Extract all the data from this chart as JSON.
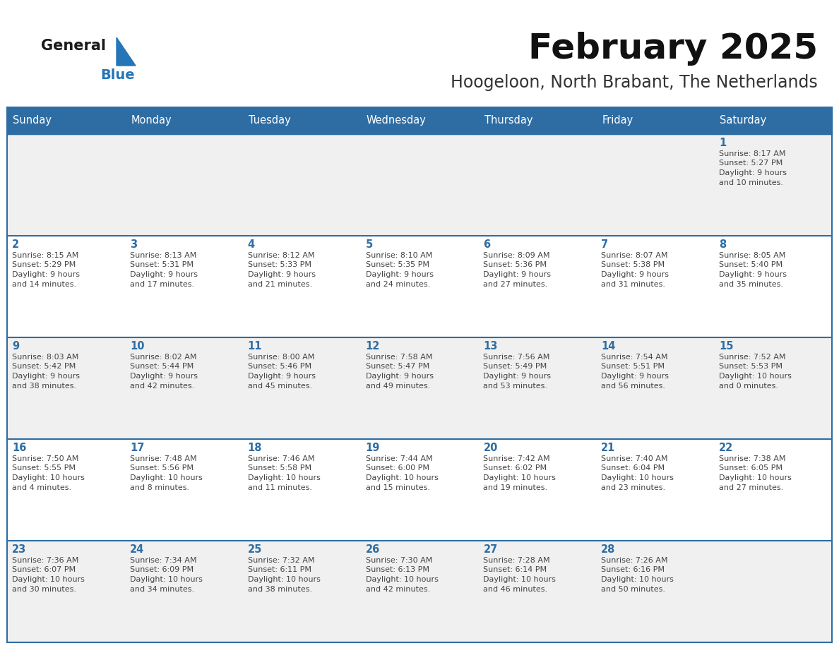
{
  "title": "February 2025",
  "subtitle": "Hoogeloon, North Brabant, The Netherlands",
  "days_of_week": [
    "Sunday",
    "Monday",
    "Tuesday",
    "Wednesday",
    "Thursday",
    "Friday",
    "Saturday"
  ],
  "header_bg_color": "#2E6DA4",
  "header_text_color": "#FFFFFF",
  "cell_bg_color_odd": "#F0F0F0",
  "cell_bg_color_even": "#FFFFFF",
  "border_color": "#2E6DA4",
  "day_number_color": "#2E6DA4",
  "cell_text_color": "#444444",
  "title_color": "#111111",
  "subtitle_color": "#333333",
  "logo_general_color": "#1a1a1a",
  "logo_blue_color": "#2575B7",
  "background_color": "#FFFFFF",
  "calendar_data": [
    {
      "day": 1,
      "col": 6,
      "row": 0,
      "sunrise": "8:17 AM",
      "sunset": "5:27 PM",
      "daylight_h": "9 hours",
      "daylight_m": "and 10 minutes."
    },
    {
      "day": 2,
      "col": 0,
      "row": 1,
      "sunrise": "8:15 AM",
      "sunset": "5:29 PM",
      "daylight_h": "9 hours",
      "daylight_m": "and 14 minutes."
    },
    {
      "day": 3,
      "col": 1,
      "row": 1,
      "sunrise": "8:13 AM",
      "sunset": "5:31 PM",
      "daylight_h": "9 hours",
      "daylight_m": "and 17 minutes."
    },
    {
      "day": 4,
      "col": 2,
      "row": 1,
      "sunrise": "8:12 AM",
      "sunset": "5:33 PM",
      "daylight_h": "9 hours",
      "daylight_m": "and 21 minutes."
    },
    {
      "day": 5,
      "col": 3,
      "row": 1,
      "sunrise": "8:10 AM",
      "sunset": "5:35 PM",
      "daylight_h": "9 hours",
      "daylight_m": "and 24 minutes."
    },
    {
      "day": 6,
      "col": 4,
      "row": 1,
      "sunrise": "8:09 AM",
      "sunset": "5:36 PM",
      "daylight_h": "9 hours",
      "daylight_m": "and 27 minutes."
    },
    {
      "day": 7,
      "col": 5,
      "row": 1,
      "sunrise": "8:07 AM",
      "sunset": "5:38 PM",
      "daylight_h": "9 hours",
      "daylight_m": "and 31 minutes."
    },
    {
      "day": 8,
      "col": 6,
      "row": 1,
      "sunrise": "8:05 AM",
      "sunset": "5:40 PM",
      "daylight_h": "9 hours",
      "daylight_m": "and 35 minutes."
    },
    {
      "day": 9,
      "col": 0,
      "row": 2,
      "sunrise": "8:03 AM",
      "sunset": "5:42 PM",
      "daylight_h": "9 hours",
      "daylight_m": "and 38 minutes."
    },
    {
      "day": 10,
      "col": 1,
      "row": 2,
      "sunrise": "8:02 AM",
      "sunset": "5:44 PM",
      "daylight_h": "9 hours",
      "daylight_m": "and 42 minutes."
    },
    {
      "day": 11,
      "col": 2,
      "row": 2,
      "sunrise": "8:00 AM",
      "sunset": "5:46 PM",
      "daylight_h": "9 hours",
      "daylight_m": "and 45 minutes."
    },
    {
      "day": 12,
      "col": 3,
      "row": 2,
      "sunrise": "7:58 AM",
      "sunset": "5:47 PM",
      "daylight_h": "9 hours",
      "daylight_m": "and 49 minutes."
    },
    {
      "day": 13,
      "col": 4,
      "row": 2,
      "sunrise": "7:56 AM",
      "sunset": "5:49 PM",
      "daylight_h": "9 hours",
      "daylight_m": "and 53 minutes."
    },
    {
      "day": 14,
      "col": 5,
      "row": 2,
      "sunrise": "7:54 AM",
      "sunset": "5:51 PM",
      "daylight_h": "9 hours",
      "daylight_m": "and 56 minutes."
    },
    {
      "day": 15,
      "col": 6,
      "row": 2,
      "sunrise": "7:52 AM",
      "sunset": "5:53 PM",
      "daylight_h": "10 hours",
      "daylight_m": "and 0 minutes."
    },
    {
      "day": 16,
      "col": 0,
      "row": 3,
      "sunrise": "7:50 AM",
      "sunset": "5:55 PM",
      "daylight_h": "10 hours",
      "daylight_m": "and 4 minutes."
    },
    {
      "day": 17,
      "col": 1,
      "row": 3,
      "sunrise": "7:48 AM",
      "sunset": "5:56 PM",
      "daylight_h": "10 hours",
      "daylight_m": "and 8 minutes."
    },
    {
      "day": 18,
      "col": 2,
      "row": 3,
      "sunrise": "7:46 AM",
      "sunset": "5:58 PM",
      "daylight_h": "10 hours",
      "daylight_m": "and 11 minutes."
    },
    {
      "day": 19,
      "col": 3,
      "row": 3,
      "sunrise": "7:44 AM",
      "sunset": "6:00 PM",
      "daylight_h": "10 hours",
      "daylight_m": "and 15 minutes."
    },
    {
      "day": 20,
      "col": 4,
      "row": 3,
      "sunrise": "7:42 AM",
      "sunset": "6:02 PM",
      "daylight_h": "10 hours",
      "daylight_m": "and 19 minutes."
    },
    {
      "day": 21,
      "col": 5,
      "row": 3,
      "sunrise": "7:40 AM",
      "sunset": "6:04 PM",
      "daylight_h": "10 hours",
      "daylight_m": "and 23 minutes."
    },
    {
      "day": 22,
      "col": 6,
      "row": 3,
      "sunrise": "7:38 AM",
      "sunset": "6:05 PM",
      "daylight_h": "10 hours",
      "daylight_m": "and 27 minutes."
    },
    {
      "day": 23,
      "col": 0,
      "row": 4,
      "sunrise": "7:36 AM",
      "sunset": "6:07 PM",
      "daylight_h": "10 hours",
      "daylight_m": "and 30 minutes."
    },
    {
      "day": 24,
      "col": 1,
      "row": 4,
      "sunrise": "7:34 AM",
      "sunset": "6:09 PM",
      "daylight_h": "10 hours",
      "daylight_m": "and 34 minutes."
    },
    {
      "day": 25,
      "col": 2,
      "row": 4,
      "sunrise": "7:32 AM",
      "sunset": "6:11 PM",
      "daylight_h": "10 hours",
      "daylight_m": "and 38 minutes."
    },
    {
      "day": 26,
      "col": 3,
      "row": 4,
      "sunrise": "7:30 AM",
      "sunset": "6:13 PM",
      "daylight_h": "10 hours",
      "daylight_m": "and 42 minutes."
    },
    {
      "day": 27,
      "col": 4,
      "row": 4,
      "sunrise": "7:28 AM",
      "sunset": "6:14 PM",
      "daylight_h": "10 hours",
      "daylight_m": "and 46 minutes."
    },
    {
      "day": 28,
      "col": 5,
      "row": 4,
      "sunrise": "7:26 AM",
      "sunset": "6:16 PM",
      "daylight_h": "10 hours",
      "daylight_m": "and 50 minutes."
    }
  ]
}
